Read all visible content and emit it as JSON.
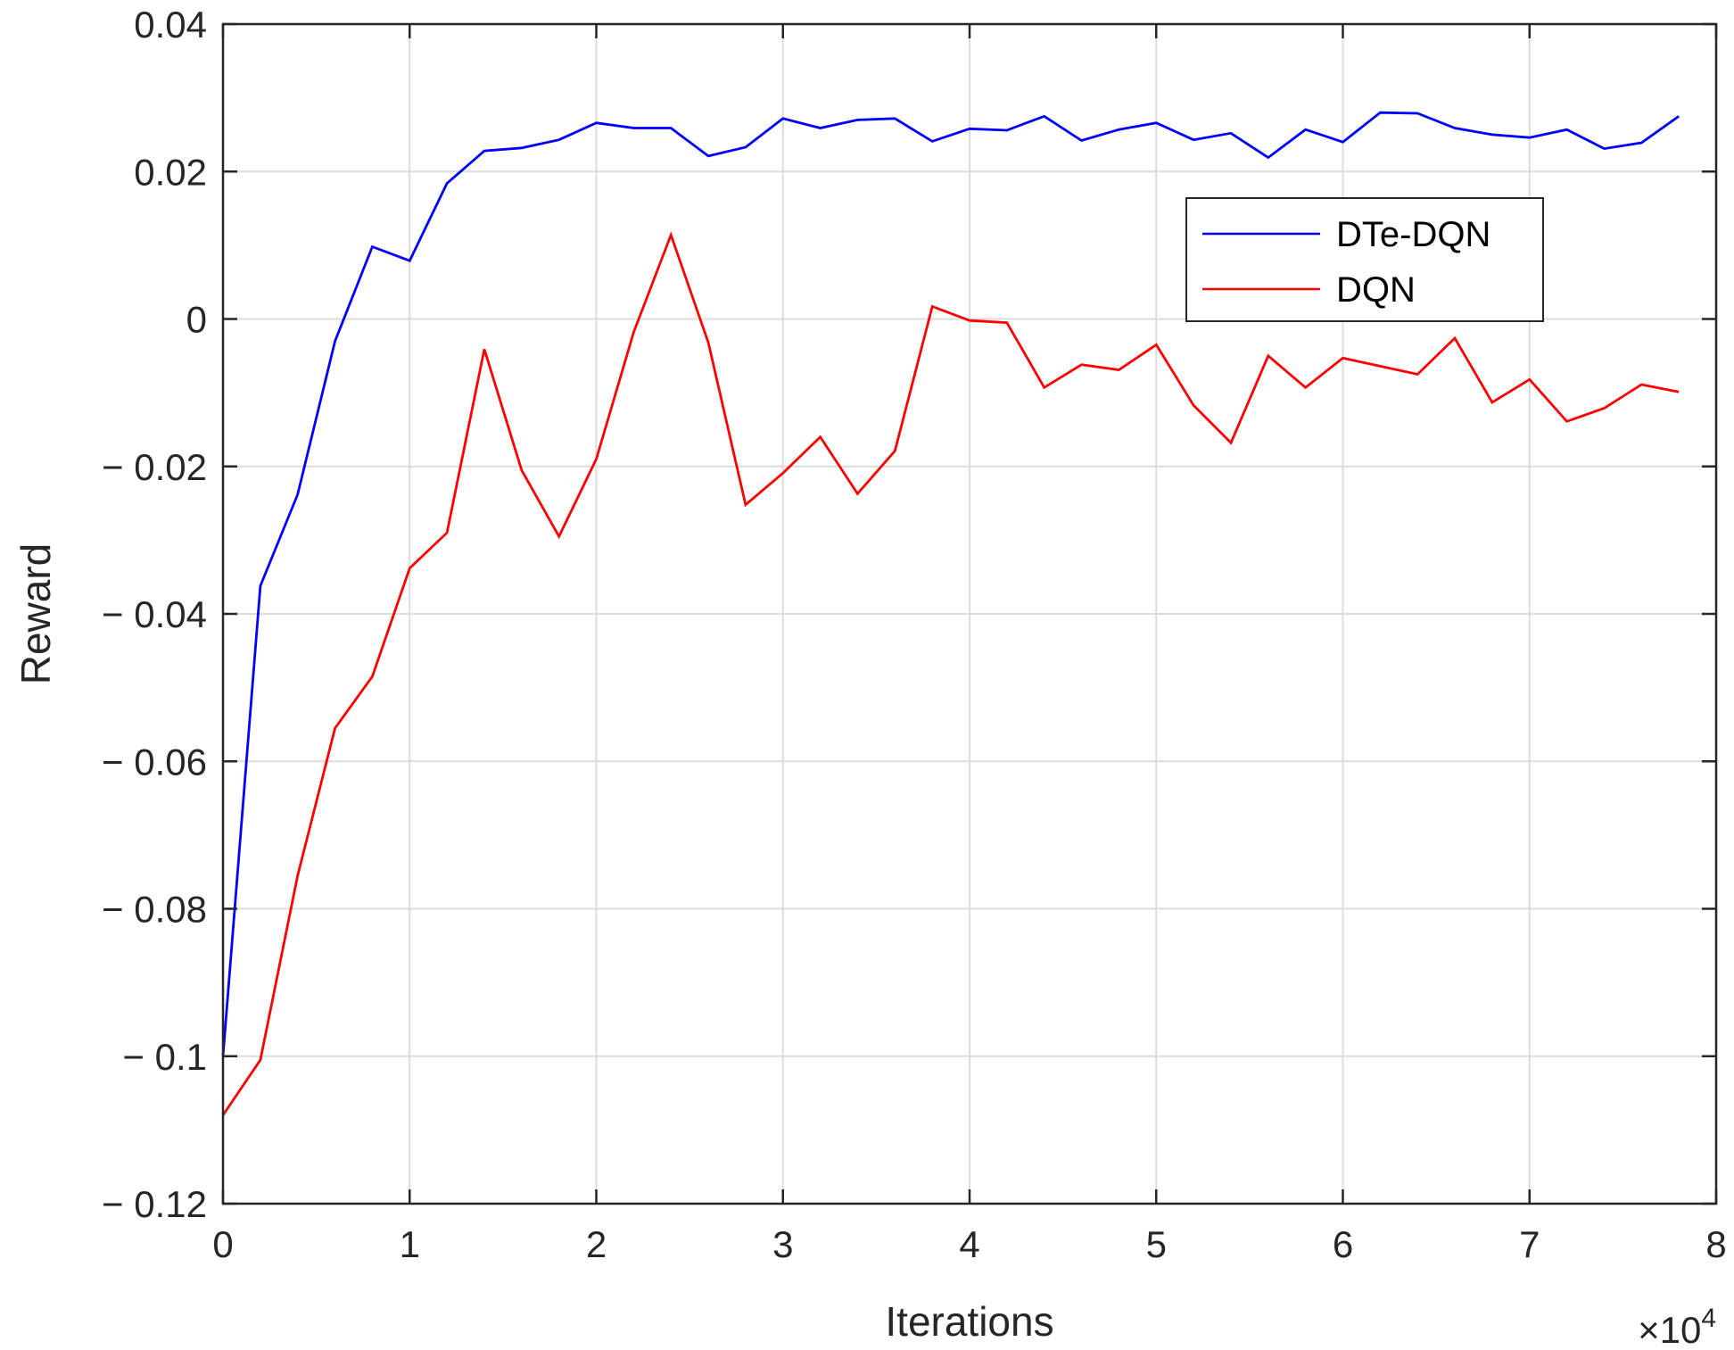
{
  "chart_data": {
    "type": "line",
    "title": "",
    "xlabel": "Iterations",
    "ylabel": "Reward",
    "x_exponent_label": "×10",
    "x_exponent_power": "4",
    "xlim": [
      0,
      8
    ],
    "ylim": [
      -0.12,
      0.04
    ],
    "xticks": [
      0,
      1,
      2,
      3,
      4,
      5,
      6,
      7,
      8
    ],
    "xtick_labels": [
      "0",
      "1",
      "2",
      "3",
      "4",
      "5",
      "6",
      "7",
      "8"
    ],
    "yticks": [
      0.04,
      0.02,
      0,
      -0.02,
      -0.04,
      -0.06,
      -0.08,
      -0.1,
      -0.12
    ],
    "ytick_labels": [
      "0.04",
      "0.02",
      "0",
      "− 0.02",
      "− 0.04",
      "− 0.06",
      "− 0.08",
      "− 0.1",
      "− 0.12"
    ],
    "grid": true,
    "legend_position": "upper-right",
    "x": [
      0,
      0.2,
      0.4,
      0.6,
      0.8,
      1.0,
      1.2,
      1.4,
      1.6,
      1.8,
      2.0,
      2.2,
      2.4,
      2.6,
      2.8,
      3.0,
      3.2,
      3.4,
      3.6,
      3.8,
      4.0,
      4.2,
      4.4,
      4.6,
      4.8,
      5.0,
      5.2,
      5.4,
      5.6,
      5.8,
      6.0,
      6.2,
      6.4,
      6.6,
      6.8,
      7.0,
      7.2,
      7.4,
      7.6,
      7.8
    ],
    "series": [
      {
        "name": "DTe-DQN",
        "color": "#0000ff",
        "values": [
          -0.1,
          -0.0362,
          -0.0238,
          -0.003,
          0.0098,
          0.0079,
          0.0184,
          0.0228,
          0.0232,
          0.0243,
          0.0266,
          0.0259,
          0.0259,
          0.0221,
          0.0233,
          0.0272,
          0.0259,
          0.027,
          0.0272,
          0.0241,
          0.0258,
          0.0256,
          0.0275,
          0.0242,
          0.0257,
          0.0266,
          0.0243,
          0.0252,
          0.0219,
          0.0257,
          0.024,
          0.028,
          0.0279,
          0.0259,
          0.025,
          0.0246,
          0.0257,
          0.0231,
          0.0239,
          0.0275
        ]
      },
      {
        "name": "DQN",
        "color": "#ff0000",
        "values": [
          -0.108,
          -0.1005,
          -0.0755,
          -0.0555,
          -0.0485,
          -0.0338,
          -0.029,
          -0.0041,
          -0.0205,
          -0.0295,
          -0.019,
          -0.0018,
          0.0114,
          -0.0032,
          -0.0252,
          -0.0209,
          -0.016,
          -0.0237,
          -0.0179,
          0.0017,
          -0.0002,
          -0.0005,
          -0.0093,
          -0.0062,
          -0.0069,
          -0.0035,
          -0.0117,
          -0.0168,
          -0.005,
          -0.0093,
          -0.0053,
          -0.0064,
          -0.0075,
          -0.0026,
          -0.0113,
          -0.0082,
          -0.0139,
          -0.0121,
          -0.0089,
          -0.0099
        ]
      }
    ]
  }
}
